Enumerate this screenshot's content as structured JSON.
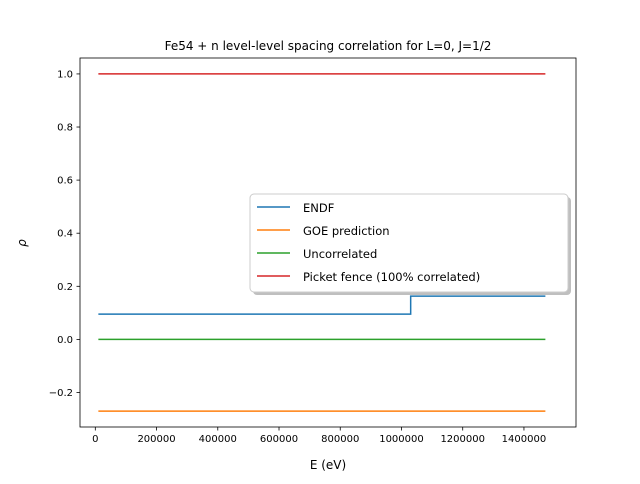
{
  "chart_data": {
    "type": "line",
    "title": "Fe54 + n  level-level spacing correlation for L=0, J=1/2",
    "xlabel": "E (eV)",
    "ylabel": "ρ",
    "xlim": [
      -50000,
      1570000
    ],
    "ylim": [
      -0.33,
      1.06
    ],
    "x_ticks": [
      {
        "value": 0,
        "label": "0"
      },
      {
        "value": 200000,
        "label": "200000"
      },
      {
        "value": 400000,
        "label": "400000"
      },
      {
        "value": 600000,
        "label": "600000"
      },
      {
        "value": 800000,
        "label": "800000"
      },
      {
        "value": 1000000,
        "label": "1000000"
      },
      {
        "value": 1200000,
        "label": "1200000"
      },
      {
        "value": 1400000,
        "label": "1400000"
      }
    ],
    "y_ticks": [
      {
        "value": -0.2,
        "label": "−0.2"
      },
      {
        "value": 0.0,
        "label": "0.0"
      },
      {
        "value": 0.2,
        "label": "0.2"
      },
      {
        "value": 0.4,
        "label": "0.4"
      },
      {
        "value": 0.6,
        "label": "0.6"
      },
      {
        "value": 0.8,
        "label": "0.8"
      },
      {
        "value": 1.0,
        "label": "1.0"
      }
    ],
    "legend_position": "center-right",
    "series": [
      {
        "name": "ENDF",
        "color": "#1f77b4",
        "step": true,
        "x": [
          10000,
          1030000,
          1030000,
          1470000
        ],
        "y": [
          0.095,
          0.095,
          0.163,
          0.163
        ]
      },
      {
        "name": "GOE prediction",
        "color": "#ff7f0e",
        "x": [
          10000,
          1470000
        ],
        "y": [
          -0.27,
          -0.27
        ]
      },
      {
        "name": "Uncorrelated",
        "color": "#2ca02c",
        "x": [
          10000,
          1470000
        ],
        "y": [
          0.0,
          0.0
        ]
      },
      {
        "name": "Picket fence (100% correlated)",
        "color": "#d62728",
        "x": [
          10000,
          1470000
        ],
        "y": [
          1.0,
          1.0
        ]
      }
    ]
  }
}
